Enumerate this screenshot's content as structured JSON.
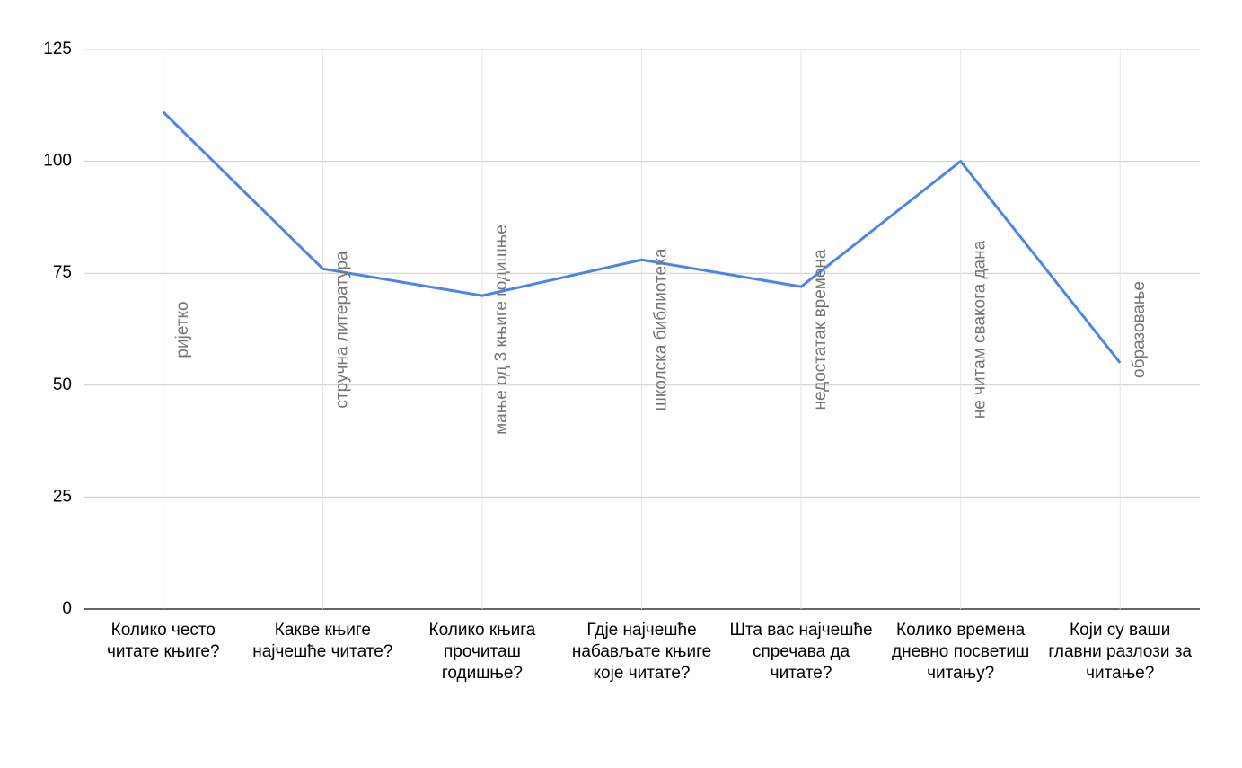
{
  "chart_data": {
    "type": "line",
    "categories": [
      "Колико често читате књиге?",
      "Какве књиге најчешће читате?",
      "Колико књига прочиташ годишње?",
      "Гдје најчешће набављате књиге које читате?",
      "Шта вас најчешће спречава да читате?",
      "Колико времена дневно посветиш читању?",
      "Који су ваши главни разлози за читање?"
    ],
    "series": [
      {
        "color": "#4a86e8",
        "values": [
          111,
          76,
          70,
          78,
          72,
          100,
          55
        ],
        "annotations": [
          "ријетко",
          "стручна литература",
          "мање од 3 књиге годишње",
          "школска библиотека",
          "недостатак времена",
          "не читам свакога дана",
          "образовање"
        ]
      }
    ],
    "ylim": [
      0,
      125
    ],
    "yticks": [
      0,
      25,
      50,
      75,
      100,
      125
    ],
    "grid": true
  }
}
